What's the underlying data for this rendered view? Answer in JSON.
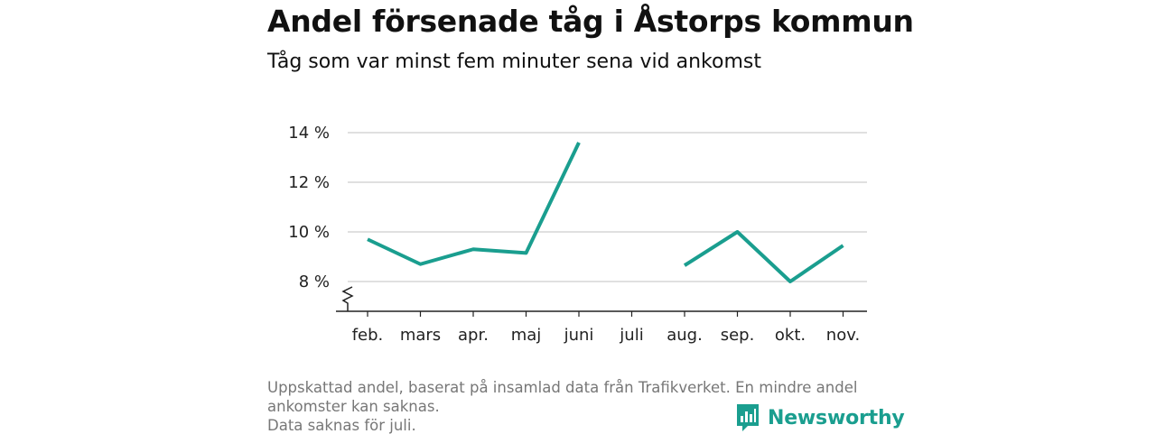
{
  "title": "Andel försenade tåg i Åstorps kommun",
  "subtitle": "Tåg som var minst fem minuter sena vid ankomst",
  "footnotes": [
    "Uppskattad andel, baserat på insamlad data från Trafikverket. En mindre andel",
    "ankomster kan saknas.",
    "Data saknas för juli."
  ],
  "brand": {
    "name": "Newsworthy",
    "color": "#1a9e8f",
    "icon": "bar-chart-logo-icon"
  },
  "chart_data": {
    "type": "line",
    "categories": [
      "feb.",
      "mars",
      "apr.",
      "maj",
      "juni",
      "juli",
      "aug.",
      "sep.",
      "okt.",
      "nov."
    ],
    "series": [
      {
        "values": [
          9.7,
          8.7,
          9.3,
          9.15,
          13.6,
          null,
          8.65,
          10.0,
          8.0,
          9.45
        ],
        "color": "#1a9e8f"
      }
    ],
    "yticks": [
      8,
      10,
      12,
      14
    ],
    "ytick_labels": [
      "8 %",
      "10 %",
      "12 %",
      "14 %"
    ],
    "ylim": [
      6.8,
      14.4
    ],
    "y_axis_break": true,
    "grid": true,
    "xlabel": "",
    "ylabel": ""
  }
}
